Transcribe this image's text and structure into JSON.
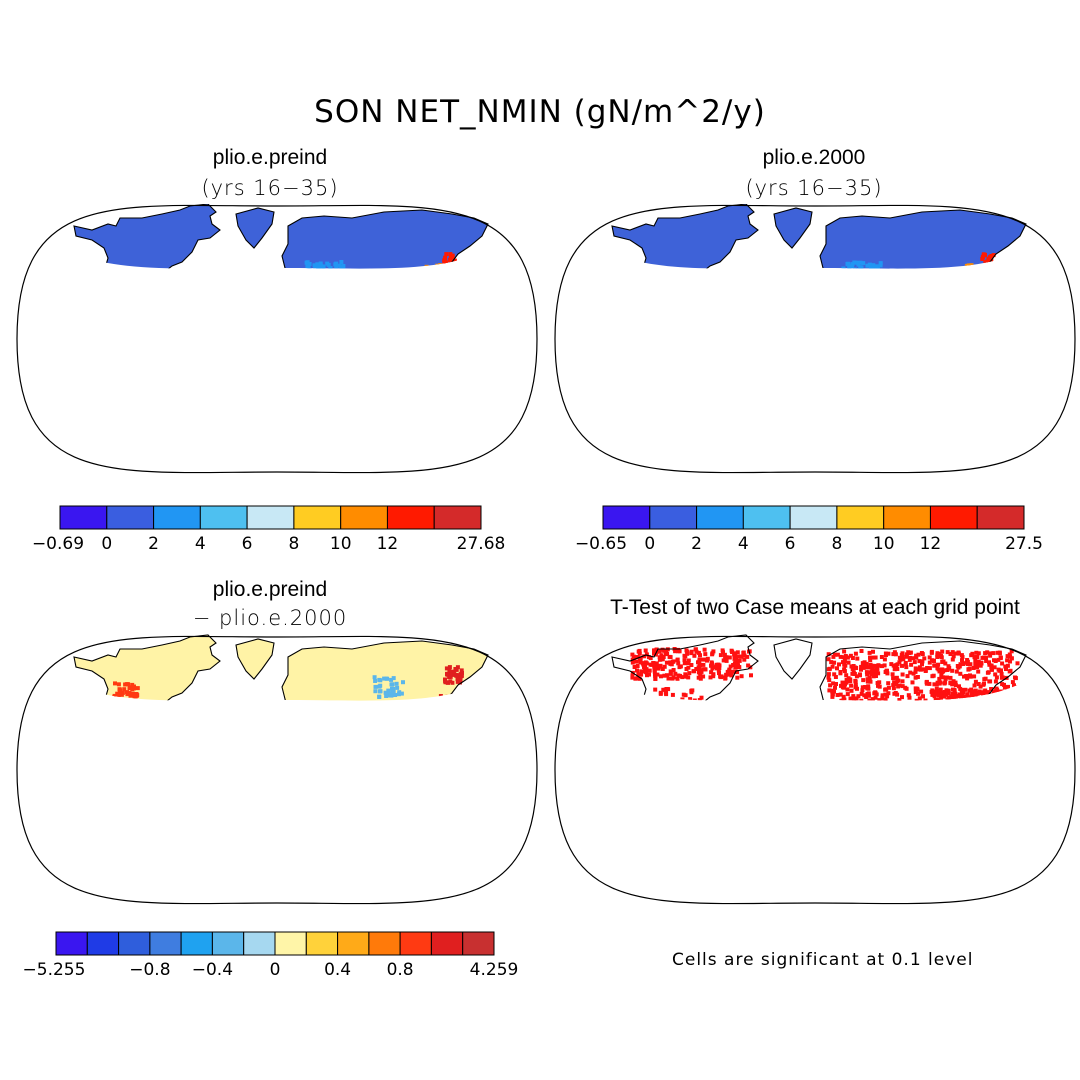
{
  "title": "SON NET_NMIN (gN/m^2/y)",
  "chart_data": [
    {
      "type": "heatmap",
      "title": "plio.e.preind",
      "subtitle": "(yrs 16−35)",
      "projection": "Robinson world map",
      "colorbar": {
        "colors": [
          "#3a16f0",
          "#3a5ee0",
          "#2196f3",
          "#4ec0f0",
          "#c8e8f5",
          "#ffcc22",
          "#ff8c00",
          "#ff1a00",
          "#d42a2a"
        ],
        "tick_labels": [
          "−0.69",
          "0",
          "2",
          "4",
          "6",
          "8",
          "10",
          "12",
          "27.68"
        ],
        "min": -0.69,
        "max": 27.68
      }
    },
    {
      "type": "heatmap",
      "title": "plio.e.2000",
      "subtitle": "(yrs 16−35)",
      "projection": "Robinson world map",
      "colorbar": {
        "colors": [
          "#3a16f0",
          "#3a5ee0",
          "#2196f3",
          "#4ec0f0",
          "#c8e8f5",
          "#ffcc22",
          "#ff8c00",
          "#ff1a00",
          "#d42a2a"
        ],
        "tick_labels": [
          "−0.65",
          "0",
          "2",
          "4",
          "6",
          "8",
          "10",
          "12",
          "27.5"
        ],
        "min": -0.65,
        "max": 27.5
      }
    },
    {
      "type": "heatmap",
      "title": "plio.e.preind",
      "subtitle": "− plio.e.2000",
      "projection": "Robinson world map",
      "colorbar": {
        "colors": [
          "#3a16f0",
          "#1f3be6",
          "#2f5edc",
          "#3f7de0",
          "#1fa2f0",
          "#5bb6ea",
          "#a6d8f0",
          "#fff5a8",
          "#ffd23a",
          "#ffaa18",
          "#ff7a0a",
          "#ff3a12",
          "#e01f1f",
          "#c83030"
        ],
        "tick_labels": [
          "−5.255",
          "−0.8",
          "−0.4",
          "0",
          "0.4",
          "0.8",
          "4.259"
        ],
        "min": -5.255,
        "max": 4.259
      }
    },
    {
      "type": "heatmap",
      "title": "T-Test of two Case means at each grid point",
      "projection": "Robinson world map",
      "note": "Cells are significant at 0.1 level"
    }
  ],
  "colors": {
    "land_base": "#3e62d8",
    "diff_base": "#fff3a6",
    "signif": "#ff1010"
  }
}
